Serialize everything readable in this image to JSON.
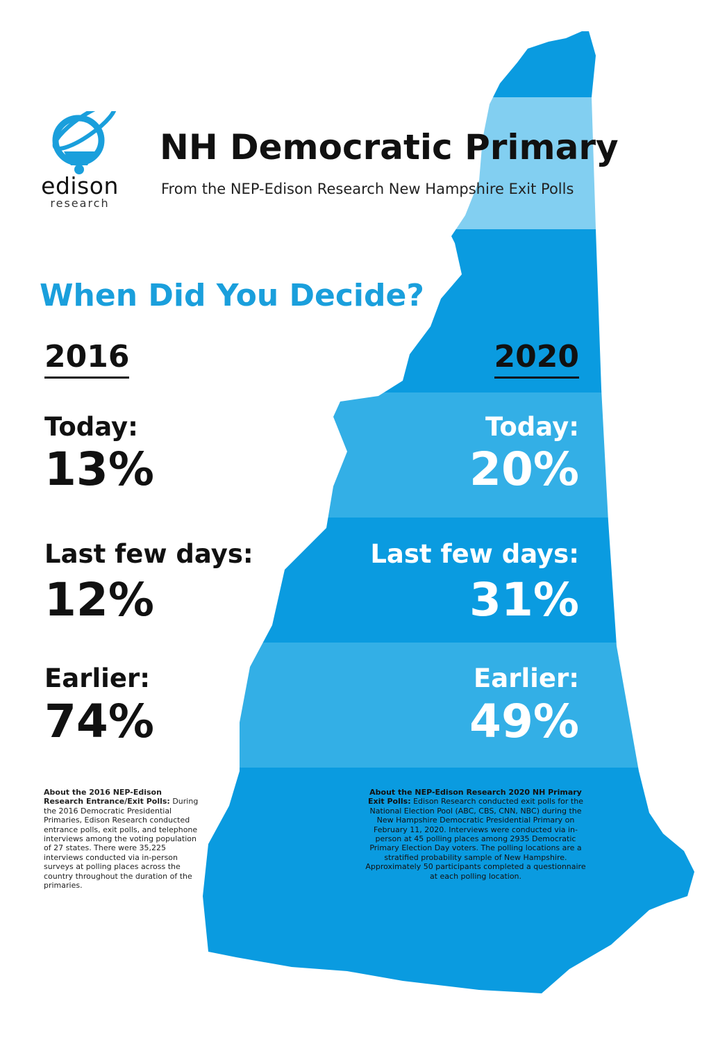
{
  "logo": {
    "word": "edison",
    "sub": "research"
  },
  "header": {
    "title": "NH Democratic Primary",
    "subtitle": "From the NEP-Edison Research New Hampshire Exit Polls"
  },
  "question": "When Did You Decide?",
  "colors": {
    "brand_blue": "#1a9fdc",
    "map_dark": "#0a9be0",
    "map_mid": "#33afe6",
    "map_light": "#82cff1"
  },
  "years": {
    "y2016": {
      "label": "2016",
      "rows": [
        {
          "label": "Today:",
          "value": "13%"
        },
        {
          "label": "Last few days:",
          "value": "12%"
        },
        {
          "label": "Earlier:",
          "value": "74%"
        }
      ]
    },
    "y2020": {
      "label": "2020",
      "rows": [
        {
          "label": "Today:",
          "value": "20%"
        },
        {
          "label": "Last few days:",
          "value": "31%"
        },
        {
          "label": "Earlier:",
          "value": "49%"
        }
      ]
    }
  },
  "notes": {
    "left_title": "About the 2016 NEP-Edison Research Entrance/Exit Polls:",
    "left_body": "During the 2016 Democratic Presidential Primaries, Edison Research conducted entrance polls, exit polls, and telephone interviews among the voting population of 27 states. There were 35,225 interviews conducted via in-person surveys at polling places across the country throughout the duration of the primaries.",
    "right_title": "About the NEP-Edison Research 2020 NH Primary Exit Polls:",
    "right_body": "Edison Research conducted exit polls for the National Election Pool (ABC, CBS, CNN, NBC) during the New Hampshire Democratic Presidential Primary on February 11, 2020. Interviews were conducted via in-person at 45 polling places among 2935 Democratic Primary Election Day voters. The polling locations are a stratified probability sample of New Hampshire. Approximately 50 participants completed a questionnaire at each polling location."
  }
}
